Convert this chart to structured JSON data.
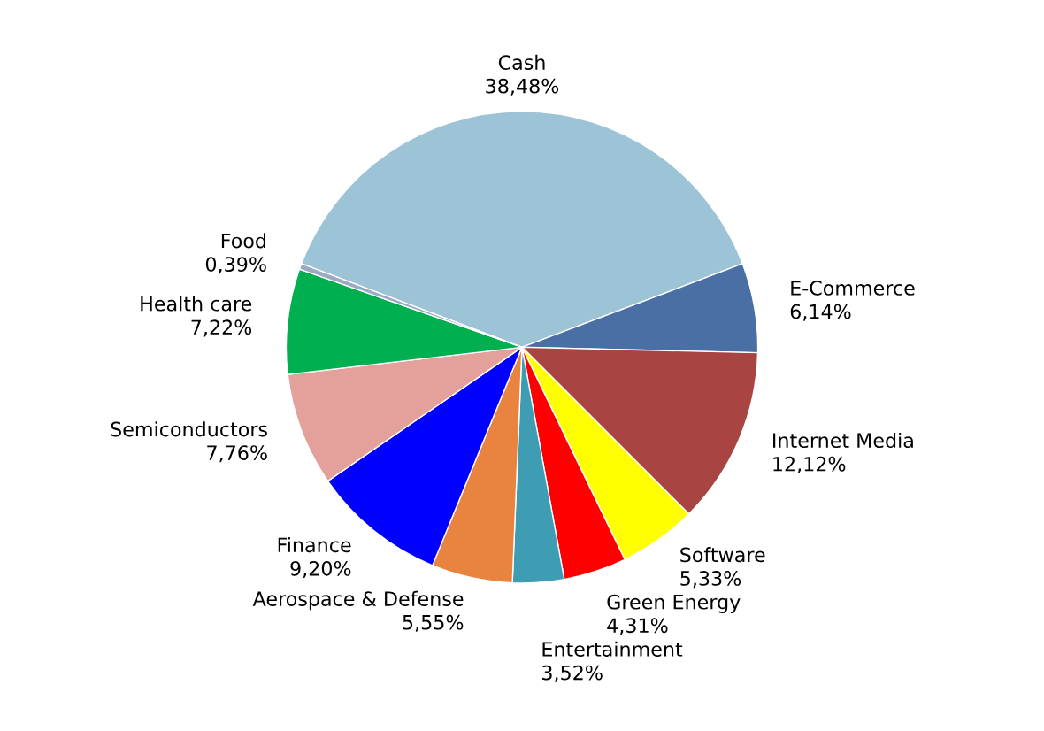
{
  "chart_data": {
    "type": "pie",
    "categories": [
      "Cash",
      "E-Commerce",
      "Internet Media",
      "Software",
      "Green Energy",
      "Entertainment",
      "Aerospace & Defense",
      "Finance",
      "Semiconductors",
      "Health care",
      "Food"
    ],
    "values": [
      38.48,
      6.14,
      12.12,
      5.33,
      4.31,
      3.52,
      5.55,
      9.2,
      7.76,
      7.22,
      0.39
    ],
    "value_labels": [
      "38,48%",
      "6,14%",
      "12,12%",
      "5,33%",
      "4,31%",
      "3,52%",
      "5,55%",
      "9,20%",
      "7,76%",
      "7,22%",
      "0,39%"
    ],
    "colors": [
      "#9dc3d6",
      "#4a6fa5",
      "#a84441",
      "#ffff00",
      "#ff0000",
      "#3f9db3",
      "#e8843f",
      "#0000ff",
      "#e4a09a",
      "#00b050",
      "#9da9c4"
    ]
  }
}
